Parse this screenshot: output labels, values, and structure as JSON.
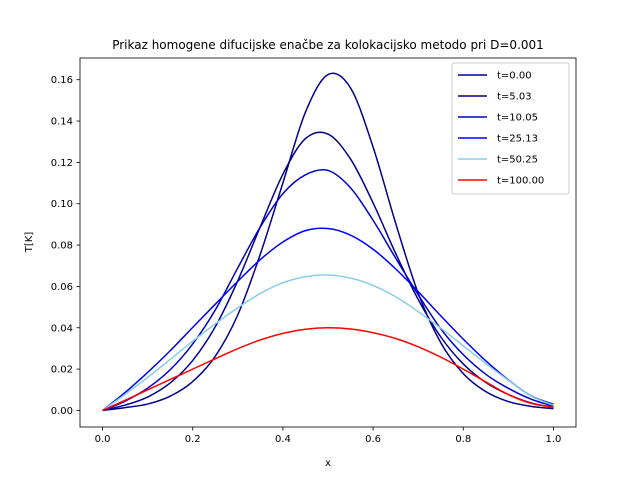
{
  "chart_data": {
    "type": "line",
    "title": "Prikaz homogene difucijske enačbe za kolokacijsko metodo pri D=0.001",
    "xlabel": "x",
    "ylabel": "T[K]",
    "xlim": [
      -0.05,
      1.05
    ],
    "ylim": [
      -0.008,
      0.1705
    ],
    "xticks": [
      0.0,
      0.2,
      0.4,
      0.6,
      0.8,
      1.0
    ],
    "xtick_labels": [
      "0.0",
      "0.2",
      "0.4",
      "0.6",
      "0.8",
      "1.0"
    ],
    "yticks": [
      0.0,
      0.02,
      0.04,
      0.06,
      0.08,
      0.1,
      0.12,
      0.14,
      0.16
    ],
    "ytick_labels": [
      "0.00",
      "0.02",
      "0.04",
      "0.06",
      "0.08",
      "0.10",
      "0.12",
      "0.14",
      "0.16"
    ],
    "grid": false,
    "legend_position": "top-right",
    "x": [
      0.0,
      0.05,
      0.1,
      0.15,
      0.2,
      0.25,
      0.3,
      0.35,
      0.4,
      0.45,
      0.5,
      0.55,
      0.6,
      0.65,
      0.7,
      0.75,
      0.8,
      0.85,
      0.9,
      0.95,
      1.0
    ],
    "series": [
      {
        "name": "t=0.00",
        "color": "#00008b",
        "values": [
          0.0,
          0.0014,
          0.0031,
          0.0069,
          0.014,
          0.0262,
          0.0463,
          0.0757,
          0.1101,
          0.1443,
          0.1625,
          0.156,
          0.1274,
          0.0906,
          0.0567,
          0.0328,
          0.0178,
          0.0091,
          0.0043,
          0.002,
          0.0009
        ]
      },
      {
        "name": "t=5.03",
        "color": "#00008b",
        "values": [
          0.0,
          0.0026,
          0.0065,
          0.0133,
          0.0242,
          0.0405,
          0.0628,
          0.089,
          0.1143,
          0.1315,
          0.1337,
          0.1216,
          0.1004,
          0.076,
          0.0537,
          0.0356,
          0.0225,
          0.0135,
          0.0077,
          0.0037,
          0.0015
        ]
      },
      {
        "name": "t=10.05",
        "color": "#0000cd",
        "values": [
          0.0,
          0.0045,
          0.0108,
          0.0197,
          0.0322,
          0.0486,
          0.069,
          0.0888,
          0.1049,
          0.114,
          0.1161,
          0.1077,
          0.092,
          0.0737,
          0.056,
          0.0395,
          0.027,
          0.0175,
          0.0107,
          0.0055,
          0.002
        ]
      },
      {
        "name": "t=25.13",
        "color": "#0000ff",
        "values": [
          0.0,
          0.0087,
          0.0184,
          0.0289,
          0.0402,
          0.0514,
          0.0625,
          0.073,
          0.0815,
          0.087,
          0.088,
          0.0848,
          0.078,
          0.0685,
          0.0575,
          0.0458,
          0.0345,
          0.024,
          0.0148,
          0.0071,
          0.003
        ]
      },
      {
        "name": "t=50.25",
        "color": "#87ceeb",
        "values": [
          0.0,
          0.0078,
          0.016,
          0.0247,
          0.0335,
          0.0419,
          0.0497,
          0.0566,
          0.0618,
          0.0647,
          0.0655,
          0.064,
          0.0605,
          0.055,
          0.0478,
          0.0398,
          0.0313,
          0.0227,
          0.0146,
          0.007,
          0.0025
        ]
      },
      {
        "name": "t=100.00",
        "color": "#ff0000",
        "values": [
          0.0,
          0.0049,
          0.01,
          0.015,
          0.02,
          0.025,
          0.0299,
          0.0341,
          0.0373,
          0.0393,
          0.04,
          0.0394,
          0.0376,
          0.0348,
          0.0308,
          0.0258,
          0.02,
          0.0138,
          0.0077,
          0.0035,
          0.0015
        ]
      }
    ]
  }
}
